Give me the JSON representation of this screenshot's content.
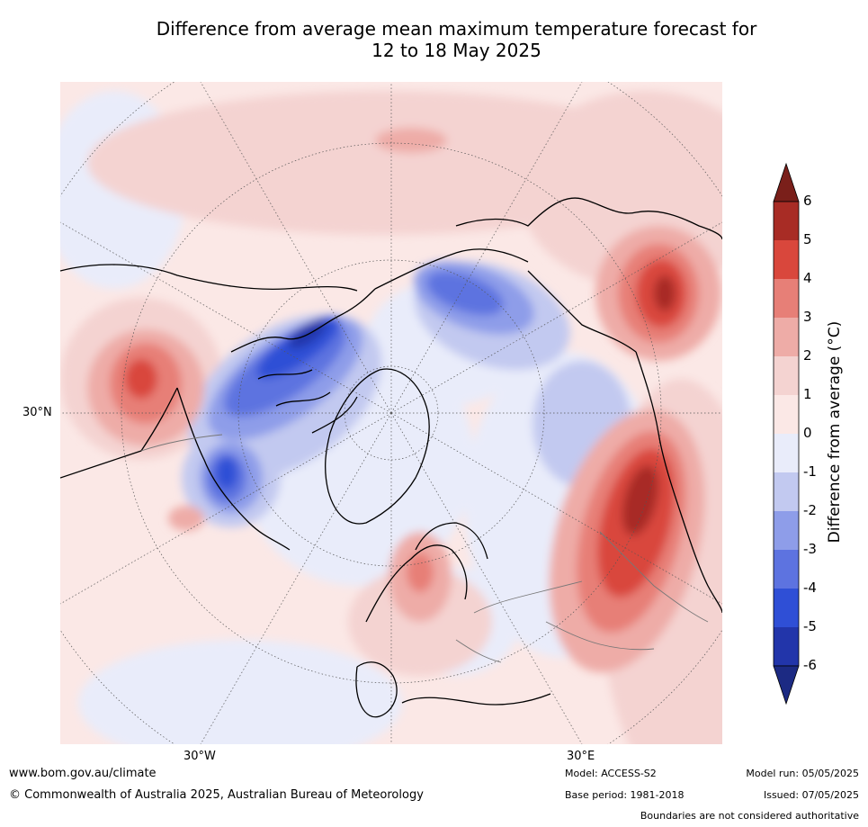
{
  "title": {
    "line1": "Difference from average mean maximum temperature forecast for",
    "line2": "12 to 18 May 2025"
  },
  "map": {
    "projection": "north polar stereographic",
    "labels": {
      "lon_left": "30°W",
      "lon_right": "30°E",
      "lat_left": "30°N"
    }
  },
  "colorbar": {
    "label": "Difference from average (°C)",
    "label_unit_symbol": "°",
    "ticks": [
      "6",
      "5",
      "4",
      "3",
      "2",
      "1",
      "0",
      "-1",
      "-2",
      "-3",
      "-4",
      "-5",
      "-6"
    ],
    "colors": {
      "above_6": "#7a1f1a",
      "5_to_6": "#a82c25",
      "4_to_5": "#d9473c",
      "3_to_4": "#e77f77",
      "2_to_3": "#eeaca7",
      "1_to_2": "#f4d3d1",
      "0_to_1": "#fbe8e6",
      "m1_to_0": "#e9ecfa",
      "m2_to_m1": "#c2c9f0",
      "m3_to_m2": "#8e9de9",
      "m4_to_m3": "#5d73e0",
      "m5_to_m4": "#2f4fd6",
      "m6_to_m5": "#2235aa",
      "below_m6": "#1c2a83"
    }
  },
  "footer": {
    "website": "www.bom.gov.au/climate",
    "copyright": "© Commonwealth of Australia 2025, Australian Bureau of Meteorology",
    "model": "Model: ACCESS-S2",
    "base_period": "Base period: 1981-2018",
    "model_run": "Model run: 05/05/2025",
    "issued": "Issued: 07/05/2025",
    "disclaimer": "Boundaries are not considered authoritative"
  }
}
